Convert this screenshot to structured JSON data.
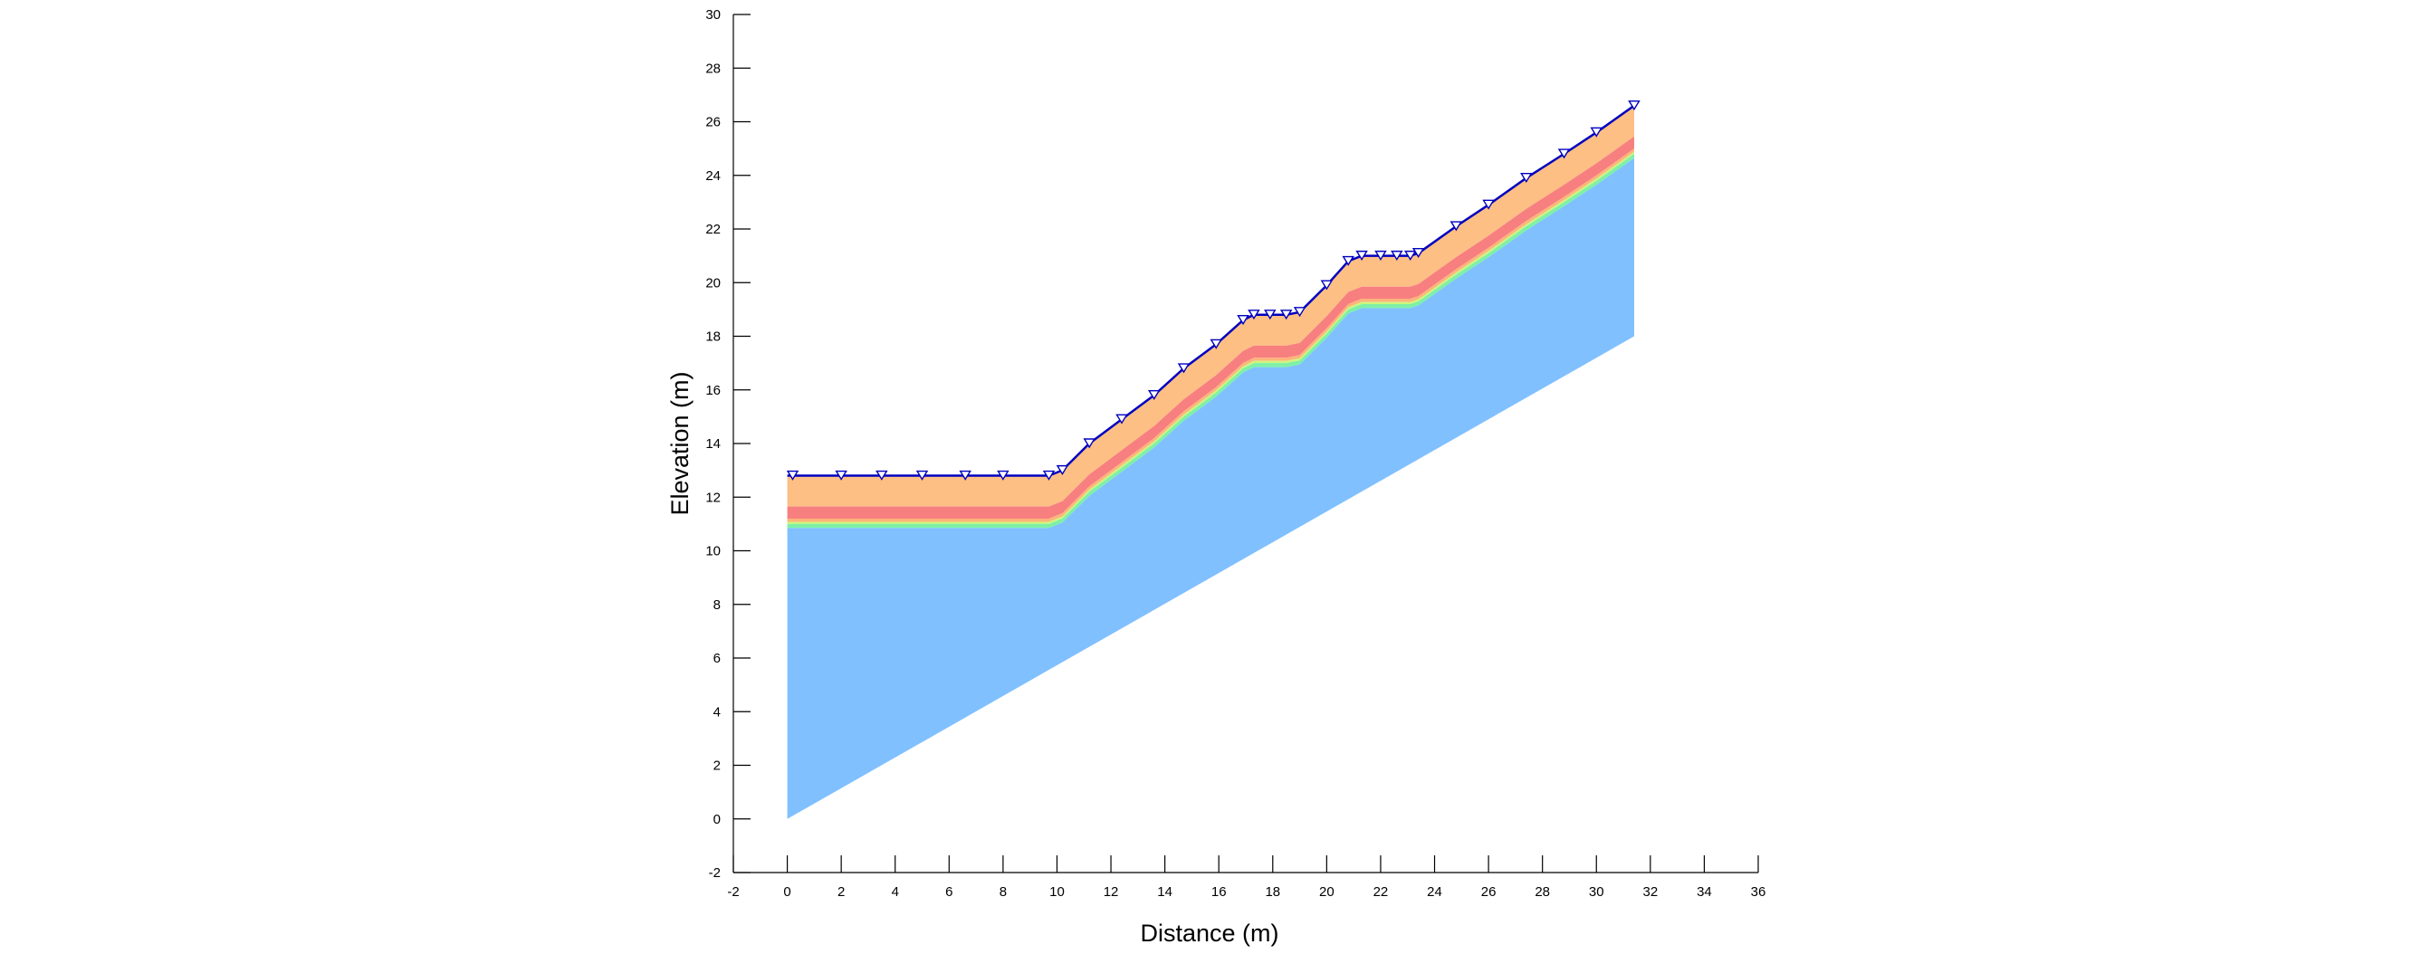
{
  "chart_data": {
    "type": "area",
    "xlabel": "Distance (m)",
    "ylabel": "Elevation (m)",
    "xlim": [
      -2,
      36
    ],
    "ylim": [
      -2,
      30
    ],
    "xticks": [
      -2,
      0,
      2,
      4,
      6,
      8,
      10,
      12,
      14,
      16,
      18,
      20,
      22,
      24,
      26,
      28,
      30,
      32,
      34,
      36
    ],
    "yticks": [
      -2,
      0,
      2,
      4,
      6,
      8,
      10,
      12,
      14,
      16,
      18,
      20,
      22,
      24,
      26,
      28,
      30
    ],
    "grid": false,
    "legend": "none",
    "ground_surface": {
      "x": [
        0,
        9.7,
        10.2,
        11.2,
        12.4,
        13.6,
        14.7,
        15.9,
        16.9,
        17.3,
        17.9,
        18.5,
        19.0,
        20.0,
        20.8,
        21.3,
        22.0,
        22.6,
        23.1,
        23.4,
        24.8,
        26.0,
        27.4,
        28.8,
        30.0,
        31.4
      ],
      "y": [
        12.8,
        12.8,
        13.0,
        14.0,
        14.9,
        15.8,
        16.8,
        17.7,
        18.6,
        18.8,
        18.8,
        18.8,
        18.9,
        19.9,
        20.8,
        21.0,
        21.0,
        21.0,
        21.0,
        21.1,
        22.1,
        22.9,
        23.9,
        24.8,
        25.6,
        26.6
      ]
    },
    "base_line": {
      "x": [
        0,
        31.4
      ],
      "y": [
        0,
        18
      ]
    },
    "water_table_markers_x": [
      0.2,
      2,
      3.5,
      5,
      6.6,
      8,
      9.7,
      10.2,
      11.2,
      12.4,
      13.6,
      14.7,
      15.9,
      16.9,
      17.3,
      17.9,
      18.5,
      19.0,
      20.0,
      20.8,
      21.3,
      22.0,
      22.6,
      23.1,
      23.4,
      24.8,
      26.0,
      27.4,
      28.8,
      30.0,
      31.4
    ],
    "bands": [
      {
        "from_depth": 0.0,
        "to_depth": 1.15,
        "color": "#fdbf84"
      },
      {
        "from_depth": 1.15,
        "to_depth": 1.6,
        "color": "#f77f80"
      },
      {
        "from_depth": 1.6,
        "to_depth": 1.72,
        "color": "#ffb47a"
      },
      {
        "from_depth": 1.72,
        "to_depth": 1.8,
        "color": "#ccf57c"
      },
      {
        "from_depth": 1.8,
        "to_depth": 1.95,
        "color": "#7ef0a6"
      }
    ],
    "base_color": "#80c0ff",
    "surface_color": "#0000c0",
    "marker_color": "#ffffff"
  }
}
